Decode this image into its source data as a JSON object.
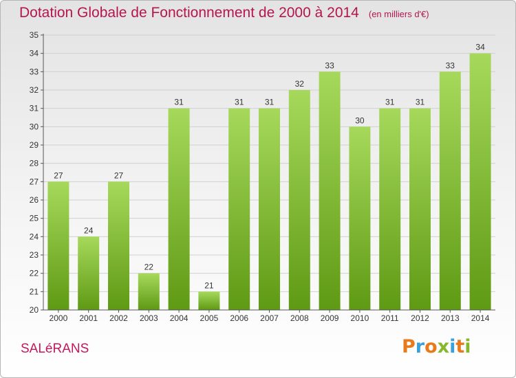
{
  "title": "Dotation Globale de Fonctionnement de 2000 à 2014",
  "subtitle": "(en milliers d'€)",
  "city": "SALéRANS",
  "logo": {
    "letters": [
      "P",
      "r",
      "o",
      "x",
      "i",
      "t",
      "i"
    ],
    "colors": [
      "#e87a1c",
      "#3aa0d8",
      "#e87a1c",
      "#86b82a",
      "#3aa0d8",
      "#e87a1c",
      "#86b82a"
    ]
  },
  "colors": {
    "bar_light": "#a6d95b",
    "bar_dark": "#5f9a14",
    "title": "#b5154f",
    "axis": "#555555",
    "grid": "#d0d0d0"
  },
  "chart_data": {
    "type": "bar",
    "title": "Dotation Globale de Fonctionnement de 2000 à 2014",
    "subtitle": "(en milliers d'€)",
    "categories": [
      "2000",
      "2001",
      "2002",
      "2003",
      "2004",
      "2005",
      "2006",
      "2007",
      "2008",
      "2009",
      "2010",
      "2011",
      "2012",
      "2013",
      "2014"
    ],
    "values": [
      27,
      24,
      27,
      22,
      31,
      21,
      31,
      31,
      32,
      33,
      30,
      31,
      31,
      33,
      34
    ],
    "xlabel": "",
    "ylabel": "",
    "ylim": [
      20,
      35
    ],
    "yticks": [
      20,
      21,
      22,
      23,
      24,
      25,
      26,
      27,
      28,
      29,
      30,
      31,
      32,
      33,
      34,
      35
    ],
    "grid": true,
    "data_labels": true
  }
}
